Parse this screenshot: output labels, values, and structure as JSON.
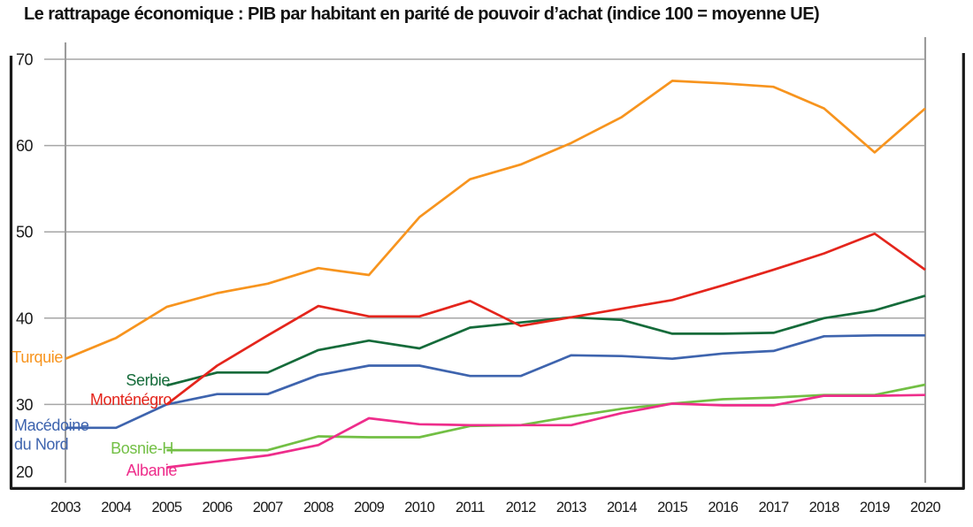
{
  "title": "Le rattrapage économique : PIB par habitant en parité de pouvoir d’achat (indice 100 = moyenne UE)",
  "chart_data": {
    "type": "line",
    "x_years": [
      2003,
      2004,
      2005,
      2006,
      2007,
      2008,
      2009,
      2010,
      2011,
      2012,
      2013,
      2014,
      2015,
      2016,
      2017,
      2018,
      2019,
      2020
    ],
    "ylim": [
      20,
      70
    ],
    "yticks": [
      70,
      60,
      50,
      40,
      30,
      20
    ],
    "grid": {
      "horizontal_at": [
        70,
        60,
        50,
        40,
        30
      ],
      "vertical_at_years": [
        2003,
        2020
      ]
    },
    "legend_position": "inline-left",
    "series": [
      {
        "name": "Turquie",
        "label_lines": [
          "Turquie"
        ],
        "color": "#F7941E",
        "start_year": 2003,
        "values": [
          35.3,
          37.7,
          41.3,
          42.9,
          44.0,
          45.8,
          45.0,
          51.7,
          56.1,
          57.8,
          60.3,
          63.3,
          67.5,
          67.2,
          66.8,
          64.3,
          59.2,
          64.3
        ]
      },
      {
        "name": "Monténégro",
        "label_lines": [
          "Monténégro"
        ],
        "color": "#E4251C",
        "start_year": 2005,
        "values": [
          30.0,
          34.5,
          38.0,
          41.4,
          40.2,
          40.2,
          42.0,
          39.1,
          40.1,
          41.1,
          42.1,
          43.8,
          45.6,
          47.5,
          49.8,
          45.6
        ]
      },
      {
        "name": "Serbie",
        "label_lines": [
          "Serbie"
        ],
        "color": "#156B3A",
        "start_year": 2005,
        "values": [
          32.2,
          33.7,
          33.7,
          36.3,
          37.4,
          36.5,
          38.9,
          39.5,
          40.1,
          39.8,
          38.2,
          38.2,
          38.3,
          40.0,
          40.9,
          42.6
        ]
      },
      {
        "name": "Macédoine du Nord",
        "label_lines": [
          "Macédoine",
          "du Nord"
        ],
        "color": "#3E64AE",
        "start_year": 2003,
        "values": [
          27.3,
          27.3,
          30.0,
          31.2,
          31.2,
          33.4,
          34.5,
          34.5,
          33.3,
          33.3,
          35.7,
          35.6,
          35.3,
          35.9,
          36.2,
          37.9,
          38.0,
          38.0
        ]
      },
      {
        "name": "Bosnie-H",
        "label_lines": [
          "Bosnie-H"
        ],
        "color": "#72BF44",
        "start_year": 2005,
        "values": [
          24.7,
          24.7,
          24.7,
          26.3,
          26.2,
          26.2,
          27.5,
          27.6,
          28.6,
          29.5,
          30.1,
          30.6,
          30.8,
          31.1,
          31.1,
          32.3
        ]
      },
      {
        "name": "Albanie",
        "label_lines": [
          "Albanie"
        ],
        "color": "#EE2D8B",
        "start_year": 2005,
        "values": [
          22.7,
          23.4,
          24.1,
          25.3,
          28.4,
          27.7,
          27.6,
          27.6,
          27.6,
          29.0,
          30.1,
          29.9,
          29.9,
          31.0,
          31.0,
          31.1
        ]
      }
    ]
  },
  "colors": {
    "grid": "#A6A6A6",
    "frame": "#1A1A1A",
    "text": "#1A1A1A",
    "background": "#FFFFFF"
  }
}
